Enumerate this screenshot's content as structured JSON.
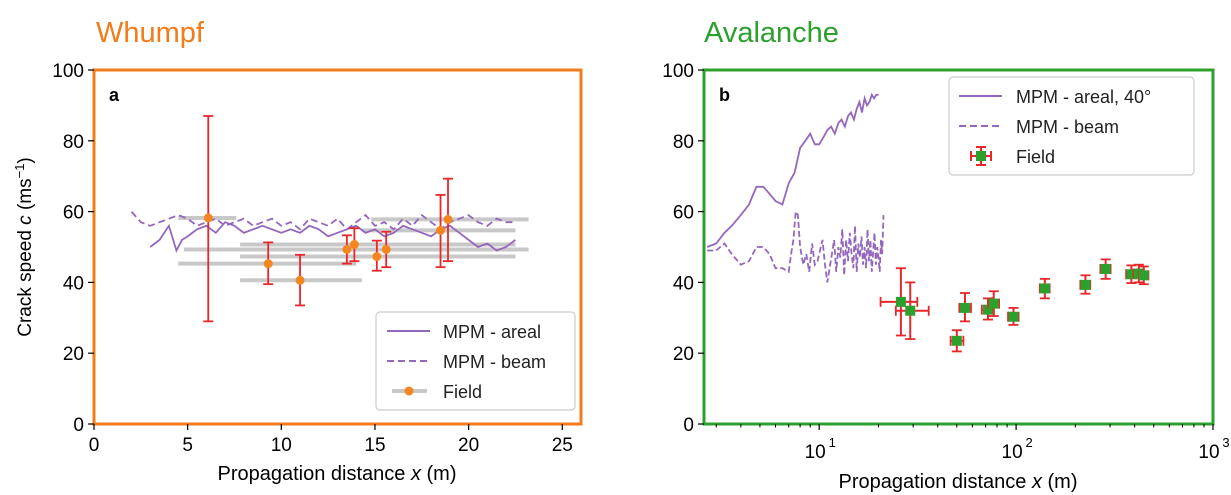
{
  "figure": {
    "ylabel_prefix": "Crack speed ",
    "ylabel_var": "c",
    "ylabel_unit": " (ms",
    "ylabel_exp": "−1",
    "ylabel_close": ")",
    "xlabel_prefix": "Propagation distance ",
    "xlabel_var": "x",
    "xlabel_unit": " (m)"
  },
  "colors": {
    "whumpf": "#f27b1a",
    "avalanche": "#2ca02c",
    "mpm": "#9467bd",
    "errorbar": "#e8272a",
    "field_orange": "#f5861f",
    "field_green": "#2ca02c",
    "grey_bar": "#c8c8c8"
  },
  "chart_data": [
    {
      "type": "scatter",
      "panel_title": "Whumpf",
      "panel_letter": "a",
      "xlim": [
        0,
        26
      ],
      "ylim": [
        0,
        100
      ],
      "xticks": [
        "0",
        "5",
        "10",
        "15",
        "20",
        "25"
      ],
      "xtick_values": [
        0,
        5,
        10,
        15,
        20,
        25
      ],
      "yticks": [
        "0",
        "20",
        "40",
        "60",
        "80",
        "100"
      ],
      "ytick_values": [
        0,
        20,
        40,
        60,
        80,
        100
      ],
      "legend": [
        "MPM - areal",
        "MPM - beam",
        "Field"
      ],
      "legend_position": "lower-right",
      "series": [
        {
          "name": "MPM - areal",
          "style": "solid",
          "x": [
            3,
            3.5,
            4,
            4.4,
            4.7,
            5,
            5.5,
            6,
            6.5,
            7,
            7.5,
            8,
            8.5,
            9,
            9.5,
            10,
            10.5,
            11,
            11.5,
            12,
            12.5,
            13,
            13.5,
            14,
            14.5,
            15,
            15.5,
            16,
            16.5,
            17,
            17.5,
            18,
            18.5,
            19,
            19.5,
            20,
            20.5,
            21,
            21.5,
            22,
            22.5
          ],
          "y": [
            50,
            52,
            56,
            49,
            52,
            53,
            55,
            56,
            54,
            57,
            56,
            54,
            55,
            56,
            55,
            54,
            55,
            54,
            56,
            55,
            53,
            54,
            55,
            56,
            54,
            55,
            53,
            54,
            56,
            55,
            54,
            53,
            55,
            56,
            54,
            52,
            50,
            51,
            49,
            50,
            52
          ]
        },
        {
          "name": "MPM - beam",
          "style": "dashed",
          "x": [
            2,
            2.5,
            3,
            3.5,
            4,
            4.5,
            5,
            5.5,
            6,
            6.5,
            7,
            7.5,
            8,
            8.5,
            9,
            9.5,
            10,
            10.5,
            11,
            11.5,
            12,
            12.5,
            13,
            13.5,
            14,
            14.5,
            15,
            15.5,
            16,
            16.5,
            17,
            17.5,
            18,
            18.5,
            19,
            19.5,
            20,
            20.5,
            21,
            21.5,
            22,
            22.5
          ],
          "y": [
            60,
            57,
            56,
            57,
            58,
            59,
            58,
            56,
            57,
            58,
            56,
            57,
            58,
            56,
            57,
            58,
            56,
            57,
            55,
            58,
            57,
            56,
            58,
            55,
            57,
            59,
            56,
            57,
            55,
            58,
            56,
            59,
            57,
            55,
            57,
            58,
            59,
            57,
            56,
            58,
            57,
            57
          ]
        },
        {
          "name": "Field",
          "points": [
            {
              "x": 6.1,
              "y": 58.2,
              "ylo": 29,
              "yhi": 87,
              "xlo": 4.5,
              "xhi": 7.6
            },
            {
              "x": 9.3,
              "y": 45.3,
              "ylo": 39.5,
              "yhi": 51.3,
              "xlo": 4.5,
              "xhi": 14
            },
            {
              "x": 11.0,
              "y": 40.6,
              "ylo": 33.5,
              "yhi": 47.8,
              "xlo": 7.8,
              "xhi": 14.3
            },
            {
              "x": 13.5,
              "y": 49.3,
              "ylo": 45.3,
              "yhi": 53.3,
              "xlo": 4.8,
              "xhi": 21.5
            },
            {
              "x": 13.9,
              "y": 50.7,
              "ylo": 46,
              "yhi": 55.3,
              "xlo": 7.8,
              "xhi": 22.5
            },
            {
              "x": 15.1,
              "y": 47.3,
              "ylo": 43.3,
              "yhi": 51.8,
              "xlo": 7.8,
              "xhi": 22.5
            },
            {
              "x": 15.6,
              "y": 49.3,
              "ylo": 44.3,
              "yhi": 54.3,
              "xlo": 11.5,
              "xhi": 23.2
            },
            {
              "x": 18.5,
              "y": 54.7,
              "ylo": 44.3,
              "yhi": 64.7,
              "xlo": 14.3,
              "xhi": 22.5
            },
            {
              "x": 18.9,
              "y": 57.8,
              "ylo": 46,
              "yhi": 69.3,
              "xlo": 14.8,
              "xhi": 23.2
            }
          ]
        }
      ]
    },
    {
      "type": "scatter",
      "panel_title": "Avalanche",
      "panel_letter": "b",
      "xscale": "log",
      "xlim": [
        2.6,
        1000
      ],
      "ylim": [
        0,
        100
      ],
      "xticks": [
        "10",
        "10",
        "10"
      ],
      "xtick_exps": [
        "1",
        "2",
        "3"
      ],
      "xtick_values": [
        10,
        100,
        1000
      ],
      "yticks": [
        "0",
        "20",
        "40",
        "60",
        "80",
        "100"
      ],
      "ytick_values": [
        0,
        20,
        40,
        60,
        80,
        100
      ],
      "legend": [
        "MPM - areal, 40°",
        "MPM - beam",
        "Field"
      ],
      "legend_position": "top-right",
      "series": [
        {
          "name": "MPM - areal, 40°",
          "style": "solid",
          "x": [
            2.7,
            3,
            3.3,
            3.6,
            4,
            4.4,
            4.8,
            5.2,
            5.6,
            6,
            6.5,
            7,
            7.5,
            8,
            8.5,
            9,
            9.5,
            10,
            10.5,
            11,
            11.5,
            12,
            12.5,
            13,
            13.5,
            14,
            14.5,
            15,
            15.5,
            16,
            16.5,
            17,
            17.5,
            18,
            18.5,
            19,
            19.5,
            20
          ],
          "y": [
            50,
            51,
            54,
            56,
            59,
            62,
            67,
            67,
            65,
            63,
            62,
            68,
            71,
            78,
            80,
            82,
            79,
            79,
            81,
            83,
            84,
            82,
            85,
            86,
            84,
            87,
            88,
            86,
            89,
            91,
            88,
            92,
            90,
            91,
            93,
            92,
            93,
            93
          ]
        },
        {
          "name": "MPM - beam",
          "style": "dashed",
          "x": [
            2.7,
            3,
            3.3,
            3.6,
            4,
            4.4,
            4.8,
            5.2,
            5.6,
            6,
            6.5,
            7,
            7.2,
            7.4,
            7.6,
            7.8,
            8,
            8.3,
            8.6,
            8.9,
            9.2,
            9.5,
            9.8,
            10.1,
            10.4,
            10.7,
            11,
            11.3,
            11.6,
            11.9,
            12.2,
            12.5,
            12.8,
            13.1,
            13.4,
            13.7,
            14,
            14.3,
            14.6,
            14.9,
            15.2,
            15.5,
            15.8,
            16.1,
            16.4,
            16.7,
            17,
            17.3,
            17.6,
            17.9,
            18.2,
            18.5,
            18.8,
            19.1,
            19.4,
            19.7,
            20,
            20.3,
            20.6,
            20.9,
            21.2
          ],
          "y": [
            49,
            49,
            51,
            48,
            45,
            46,
            50,
            50,
            48,
            44,
            44,
            43,
            48,
            52,
            60,
            59,
            50,
            45,
            48,
            43,
            51,
            45,
            46,
            49,
            52,
            45,
            40,
            44,
            48,
            52,
            43,
            50,
            47,
            55,
            42,
            52,
            46,
            54,
            48,
            44,
            56,
            43,
            51,
            47,
            53,
            45,
            50,
            44,
            55,
            46,
            52,
            43,
            49,
            54,
            45,
            50,
            47,
            43,
            52,
            48,
            59
          ]
        },
        {
          "name": "Field",
          "points": [
            {
              "x": 26,
              "y": 34.5,
              "ylo": 25,
              "yhi": 44,
              "xlo": 20.5,
              "xhi": 31.5
            },
            {
              "x": 29,
              "y": 32,
              "ylo": 24,
              "yhi": 40,
              "xlo": 24.5,
              "xhi": 36
            },
            {
              "x": 50,
              "y": 23.5,
              "ylo": 20.5,
              "yhi": 26.5,
              "xlo": 46.5,
              "xhi": 54
            },
            {
              "x": 55,
              "y": 32.8,
              "ylo": 29,
              "yhi": 37,
              "xlo": 51.5,
              "xhi": 59
            },
            {
              "x": 72,
              "y": 32.3,
              "ylo": 29.5,
              "yhi": 35.5,
              "xlo": 67,
              "xhi": 77
            },
            {
              "x": 77,
              "y": 34,
              "ylo": 30.5,
              "yhi": 37.5,
              "xlo": 72,
              "xhi": 82
            },
            {
              "x": 97,
              "y": 30.3,
              "ylo": 28,
              "yhi": 32.8,
              "xlo": 91,
              "xhi": 103
            },
            {
              "x": 140,
              "y": 38.3,
              "ylo": 35.5,
              "yhi": 41,
              "xlo": 132,
              "xhi": 148
            },
            {
              "x": 225,
              "y": 39.3,
              "ylo": 36.8,
              "yhi": 42,
              "xlo": 212,
              "xhi": 238
            },
            {
              "x": 285,
              "y": 43.8,
              "ylo": 41,
              "yhi": 46.5,
              "xlo": 268,
              "xhi": 302
            },
            {
              "x": 385,
              "y": 42.3,
              "ylo": 39.8,
              "yhi": 44.8,
              "xlo": 362,
              "xhi": 408
            },
            {
              "x": 420,
              "y": 42.5,
              "ylo": 40,
              "yhi": 45,
              "xlo": 395,
              "xhi": 445
            },
            {
              "x": 445,
              "y": 42,
              "ylo": 39.5,
              "yhi": 44.5,
              "xlo": 420,
              "xhi": 470
            }
          ]
        }
      ]
    }
  ]
}
